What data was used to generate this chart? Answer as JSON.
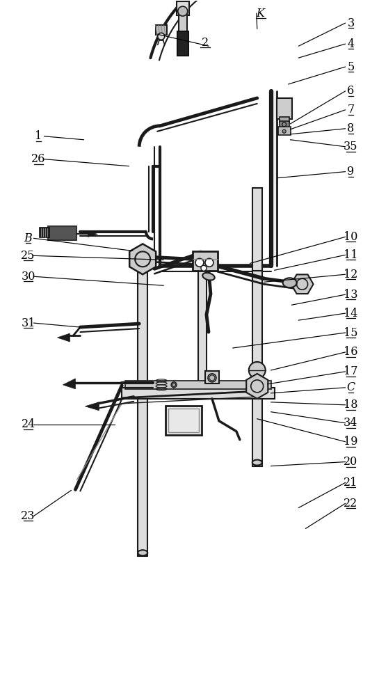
{
  "bg_color": "#ffffff",
  "lc": "#1a1a1a",
  "fig_width": 5.45,
  "fig_height": 10.0,
  "right_labels": [
    [
      "3",
      505,
      968,
      430,
      935
    ],
    [
      "4",
      505,
      938,
      430,
      918
    ],
    [
      "5",
      505,
      905,
      415,
      880
    ],
    [
      "6",
      505,
      870,
      418,
      823
    ],
    [
      "7",
      505,
      843,
      418,
      815
    ],
    [
      "8",
      505,
      816,
      418,
      808
    ],
    [
      "35",
      505,
      790,
      418,
      800
    ],
    [
      "9",
      505,
      754,
      400,
      745
    ],
    [
      "10",
      505,
      660,
      360,
      622
    ],
    [
      "11",
      505,
      634,
      395,
      612
    ],
    [
      "12",
      505,
      606,
      380,
      595
    ],
    [
      "13",
      505,
      577,
      420,
      562
    ],
    [
      "14",
      505,
      550,
      430,
      540
    ],
    [
      "15",
      505,
      522,
      335,
      500
    ],
    [
      "16",
      505,
      494,
      390,
      468
    ],
    [
      "17",
      505,
      466,
      385,
      448
    ],
    [
      "C",
      505,
      443,
      390,
      435
    ],
    [
      "18",
      505,
      418,
      390,
      422
    ],
    [
      "34",
      505,
      392,
      390,
      408
    ],
    [
      "19",
      505,
      365,
      370,
      398
    ],
    [
      "20",
      505,
      336,
      390,
      330
    ],
    [
      "21",
      505,
      306,
      430,
      270
    ],
    [
      "22",
      505,
      276,
      440,
      240
    ]
  ],
  "left_labels": [
    [
      "1",
      55,
      805,
      120,
      800
    ],
    [
      "26",
      55,
      772,
      185,
      762
    ],
    [
      "B",
      40,
      658,
      190,
      640
    ],
    [
      "25",
      40,
      633,
      235,
      627
    ],
    [
      "30",
      40,
      603,
      235,
      590
    ],
    [
      "31",
      40,
      536,
      115,
      530
    ],
    [
      "24",
      40,
      390,
      165,
      390
    ],
    [
      "23",
      40,
      258,
      102,
      295
    ]
  ],
  "K_label": [
    375,
    982,
    370,
    960
  ]
}
